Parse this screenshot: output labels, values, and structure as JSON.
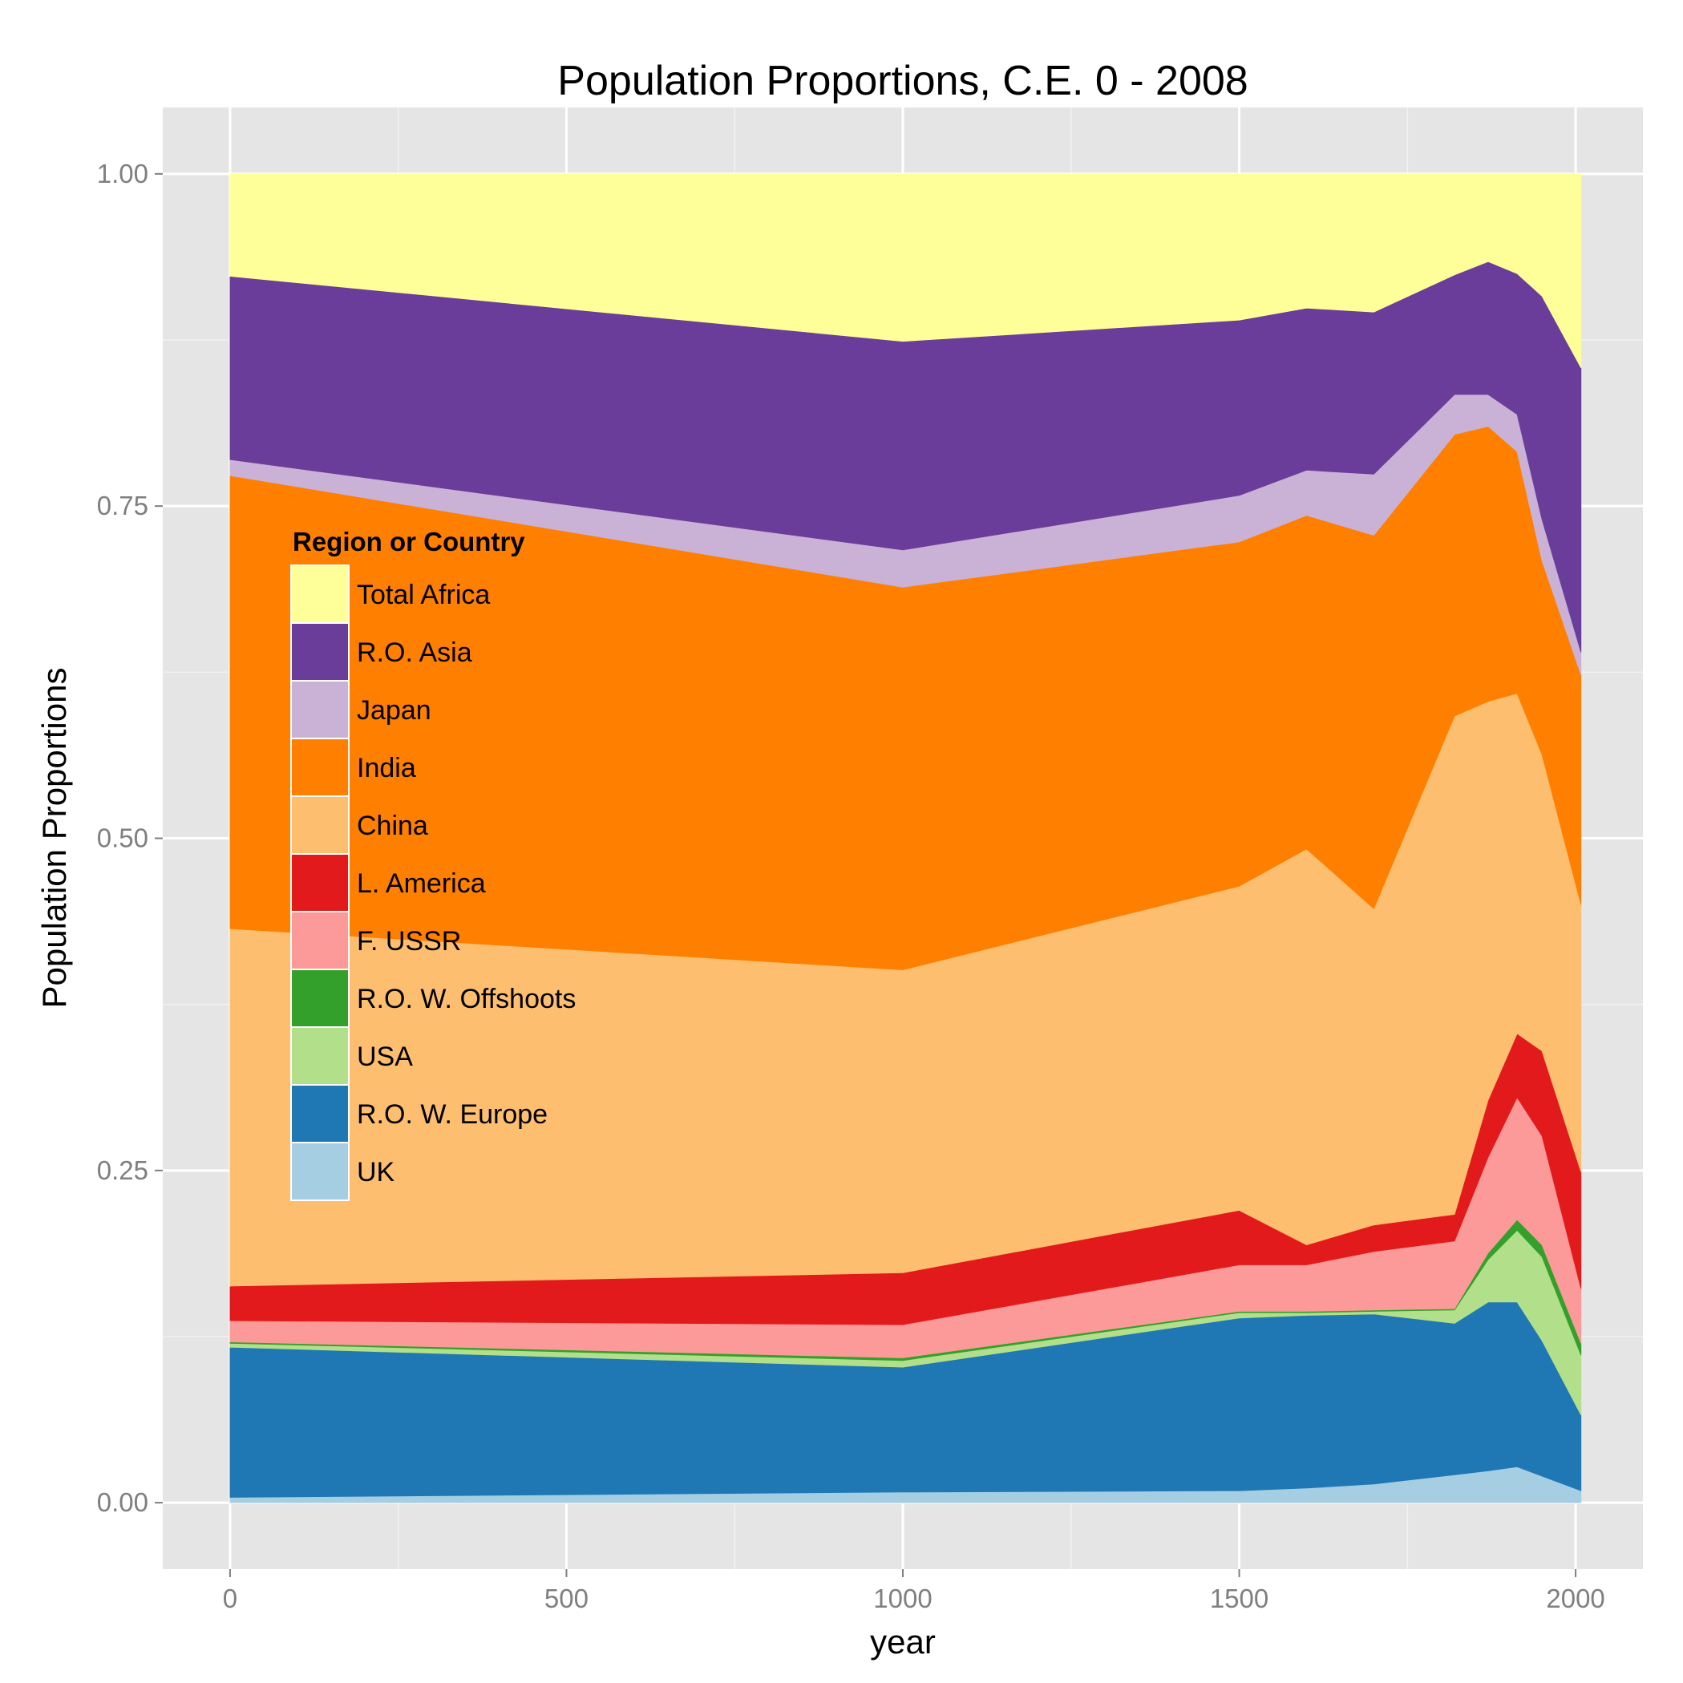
{
  "chart_data": {
    "type": "area",
    "stacked": true,
    "title": "Population Proportions, C.E. 0 - 2008",
    "xlabel": "year",
    "ylabel": "Population Proportions",
    "xlim": [
      -100,
      2100
    ],
    "ylim": [
      -0.05,
      1.05
    ],
    "x_ticks": [
      0,
      500,
      1000,
      1500,
      2000
    ],
    "x_tick_labels": [
      "0",
      "500",
      "1000",
      "1500",
      "2000"
    ],
    "y_ticks": [
      0,
      0.25,
      0.5,
      0.75,
      1
    ],
    "y_tick_labels": [
      "0.00",
      "0.25",
      "0.50",
      "0.75",
      "1.00"
    ],
    "grid": true,
    "legend": {
      "title": "Region or Country",
      "placement": "inside-left"
    },
    "x": [
      0,
      1000,
      1500,
      1600,
      1700,
      1820,
      1870,
      1913,
      1950,
      2008
    ],
    "series": [
      {
        "name": "UK",
        "color": "#A6CEE3",
        "values": [
          0.004,
          0.008,
          0.009,
          0.011,
          0.014,
          0.021,
          0.024,
          0.027,
          0.02,
          0.009
        ]
      },
      {
        "name": "R.O. W. Europe",
        "color": "#1F78B4",
        "values": [
          0.113,
          0.094,
          0.13,
          0.13,
          0.128,
          0.114,
          0.127,
          0.124,
          0.102,
          0.057
        ]
      },
      {
        "name": "USA",
        "color": "#B2DF8A",
        "values": [
          0.003,
          0.005,
          0.004,
          0.002,
          0.002,
          0.01,
          0.032,
          0.054,
          0.063,
          0.045
        ]
      },
      {
        "name": "R.O. W. Offshoots",
        "color": "#33A02C",
        "values": [
          0.001,
          0.002,
          0.001,
          0.001,
          0.001,
          0.001,
          0.005,
          0.008,
          0.009,
          0.009
        ]
      },
      {
        "name": "F. USSR",
        "color": "#FB9A99",
        "values": [
          0.016,
          0.025,
          0.035,
          0.035,
          0.044,
          0.051,
          0.072,
          0.092,
          0.082,
          0.041
        ]
      },
      {
        "name": "L. America",
        "color": "#E31A1C",
        "values": [
          0.026,
          0.039,
          0.041,
          0.015,
          0.02,
          0.02,
          0.043,
          0.048,
          0.064,
          0.088
        ]
      },
      {
        "name": "China",
        "color": "#FDBF6F",
        "values": [
          0.269,
          0.228,
          0.244,
          0.298,
          0.238,
          0.375,
          0.3,
          0.256,
          0.223,
          0.201
        ]
      },
      {
        "name": "India",
        "color": "#FF7F00",
        "values": [
          0.341,
          0.288,
          0.259,
          0.251,
          0.281,
          0.212,
          0.207,
          0.182,
          0.146,
          0.173
        ]
      },
      {
        "name": "Japan",
        "color": "#CAB2D6",
        "values": [
          0.012,
          0.028,
          0.035,
          0.034,
          0.046,
          0.03,
          0.024,
          0.028,
          0.031,
          0.017
        ]
      },
      {
        "name": "R.O. Asia",
        "color": "#6A3D9A",
        "values": [
          0.138,
          0.157,
          0.132,
          0.122,
          0.122,
          0.09,
          0.1,
          0.106,
          0.168,
          0.214
        ]
      },
      {
        "name": "Total Africa",
        "color": "#FFFF99",
        "values": [
          0.077,
          0.126,
          0.11,
          0.101,
          0.104,
          0.076,
          0.066,
          0.075,
          0.092,
          0.146
        ]
      }
    ]
  }
}
